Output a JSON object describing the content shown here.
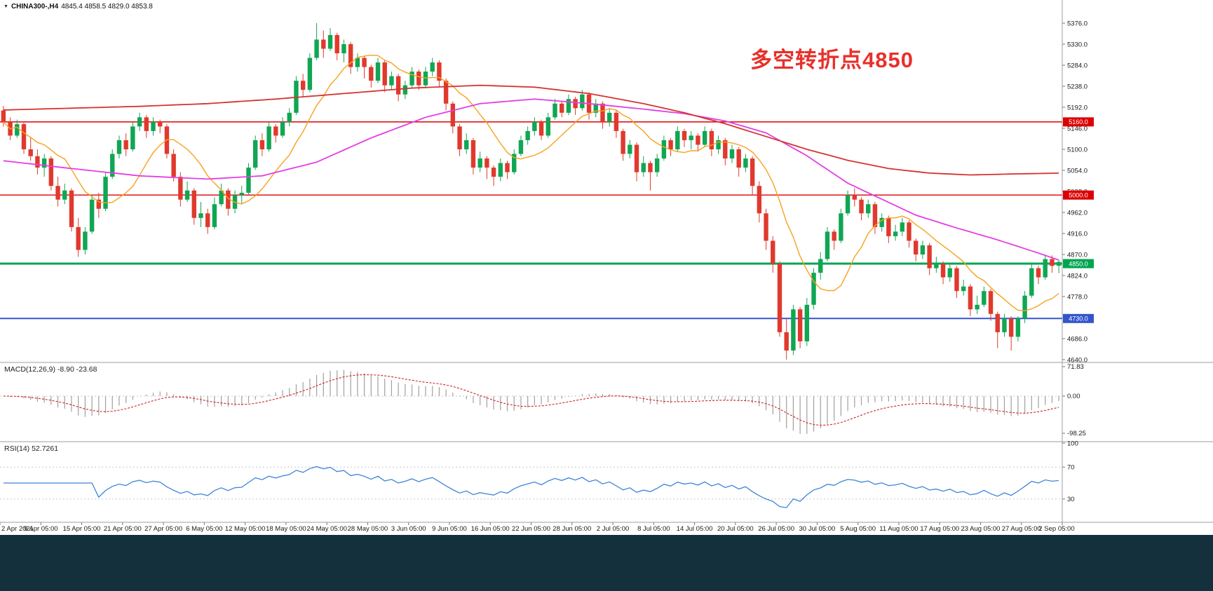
{
  "header": {
    "icon": "▼",
    "symbol": "CHINA300-,H4",
    "ohlc_text": "4845.4 4858.5 4829.0 4853.8"
  },
  "annotation": {
    "text": "多空转折点4850",
    "color": "#e8302a"
  },
  "colors": {
    "background": "#ffffff",
    "candle_up": "#10a653",
    "candle_down": "#e0392d",
    "ma_fast": "#f6a21d",
    "ma_medium": "#e33fe3",
    "ma_slow": "#d63333",
    "separator": "#9e9e9e",
    "axis_text": "#1a1a1a",
    "macd_histogram": "#a0a0a0",
    "macd_signal": "#cc2222",
    "rsi_line": "#3d85d8",
    "level_dotted": "#c8c8c8",
    "bottom_bar": "#14303c"
  },
  "chart_data": {
    "type": "candlestick",
    "symbol": "CHINA300-",
    "timeframe": "H4",
    "ohlc_display": {
      "open": "4845.4",
      "high": "4858.5",
      "low": "4829.0",
      "close": "4853.8"
    },
    "price_axis": {
      "ticks": [
        "5376.0",
        "5330.0",
        "5284.0",
        "5238.0",
        "5192.0",
        "5146.0",
        "5100.0",
        "5054.0",
        "5008.0",
        "4962.0",
        "4916.0",
        "4870.0",
        "4824.0",
        "4778.0",
        "4732.0",
        "4686.0",
        "4640.0"
      ],
      "max": 5376.0,
      "min": 4640.0
    },
    "time_axis": [
      "2 Apr 2021",
      "9 Apr 05:00",
      "15 Apr 05:00",
      "21 Apr 05:00",
      "27 Apr 05:00",
      "6 May 05:00",
      "12 May 05:00",
      "18 May 05:00",
      "24 May 05:00",
      "28 May 05:00",
      "3 Jun 05:00",
      "9 Jun 05:00",
      "16 Jun 05:00",
      "22 Jun 05:00",
      "28 Jun 05:00",
      "2 Jul 05:00",
      "8 Jul 05:00",
      "14 Jul 05:00",
      "20 Jul 05:00",
      "26 Jul 05:00",
      "30 Jul 05:00",
      "5 Aug 05:00",
      "11 Aug 05:00",
      "17 Aug 05:00",
      "23 Aug 05:00",
      "27 Aug 05:00",
      "2 Sep 05:00"
    ],
    "hlines": [
      {
        "price": 5160.0,
        "label": "5160.0",
        "color": "#dd0000",
        "width": 1.4
      },
      {
        "price": 5000.0,
        "label": "5000.0",
        "color": "#dd0000",
        "width": 1.4
      },
      {
        "price": 4850.0,
        "label": "4850.0",
        "color": "#00a550",
        "width": 3
      },
      {
        "price": 4730.0,
        "label": "4730.0",
        "color": "#3355cc",
        "width": 2
      }
    ],
    "candles": [
      [
        5185,
        5195,
        5150,
        5160
      ],
      [
        5160,
        5170,
        5120,
        5130
      ],
      [
        5130,
        5165,
        5125,
        5155
      ],
      [
        5155,
        5160,
        5090,
        5100
      ],
      [
        5100,
        5125,
        5075,
        5085
      ],
      [
        5085,
        5100,
        5045,
        5060
      ],
      [
        5060,
        5090,
        5040,
        5080
      ],
      [
        5080,
        5085,
        5010,
        5020
      ],
      [
        5020,
        5040,
        4975,
        4990
      ],
      [
        4990,
        5025,
        4980,
        5010
      ],
      [
        5010,
        5015,
        4920,
        4930
      ],
      [
        4930,
        4950,
        4865,
        4880
      ],
      [
        4880,
        4930,
        4870,
        4920
      ],
      [
        4920,
        5000,
        4915,
        4990
      ],
      [
        4990,
        5005,
        4950,
        4970
      ],
      [
        4970,
        5050,
        4965,
        5040
      ],
      [
        5040,
        5100,
        5035,
        5090
      ],
      [
        5090,
        5130,
        5080,
        5120
      ],
      [
        5120,
        5135,
        5085,
        5100
      ],
      [
        5100,
        5160,
        5095,
        5150
      ],
      [
        5150,
        5180,
        5140,
        5170
      ],
      [
        5170,
        5175,
        5125,
        5140
      ],
      [
        5140,
        5170,
        5130,
        5160
      ],
      [
        5160,
        5165,
        5135,
        5150
      ],
      [
        5150,
        5155,
        5080,
        5090
      ],
      [
        5090,
        5100,
        5030,
        5040
      ],
      [
        5040,
        5050,
        4975,
        4990
      ],
      [
        4990,
        5030,
        4985,
        5010
      ],
      [
        5010,
        5015,
        4935,
        4950
      ],
      [
        4950,
        4985,
        4930,
        4960
      ],
      [
        4960,
        4970,
        4915,
        4930
      ],
      [
        4930,
        4995,
        4925,
        4980
      ],
      [
        4980,
        5025,
        4975,
        5010
      ],
      [
        5010,
        5015,
        4955,
        4970
      ],
      [
        4970,
        5010,
        4960,
        5000
      ],
      [
        5000,
        5020,
        4980,
        5005
      ],
      [
        5005,
        5070,
        5000,
        5060
      ],
      [
        5060,
        5130,
        5055,
        5120
      ],
      [
        5120,
        5135,
        5085,
        5100
      ],
      [
        5100,
        5160,
        5095,
        5150
      ],
      [
        5150,
        5155,
        5115,
        5130
      ],
      [
        5130,
        5170,
        5125,
        5160
      ],
      [
        5160,
        5190,
        5150,
        5180
      ],
      [
        5180,
        5260,
        5175,
        5250
      ],
      [
        5250,
        5265,
        5215,
        5230
      ],
      [
        5230,
        5310,
        5225,
        5300
      ],
      [
        5300,
        5376,
        5295,
        5340
      ],
      [
        5340,
        5360,
        5300,
        5320
      ],
      [
        5320,
        5365,
        5315,
        5350
      ],
      [
        5350,
        5355,
        5295,
        5310
      ],
      [
        5310,
        5340,
        5290,
        5330
      ],
      [
        5330,
        5335,
        5265,
        5280
      ],
      [
        5280,
        5310,
        5270,
        5300
      ],
      [
        5300,
        5305,
        5255,
        5280
      ],
      [
        5280,
        5285,
        5235,
        5250
      ],
      [
        5250,
        5300,
        5245,
        5290
      ],
      [
        5290,
        5295,
        5225,
        5240
      ],
      [
        5240,
        5270,
        5230,
        5260
      ],
      [
        5260,
        5265,
        5205,
        5220
      ],
      [
        5220,
        5250,
        5210,
        5240
      ],
      [
        5240,
        5280,
        5235,
        5270
      ],
      [
        5270,
        5275,
        5230,
        5240
      ],
      [
        5240,
        5280,
        5235,
        5270
      ],
      [
        5270,
        5300,
        5260,
        5290
      ],
      [
        5290,
        5295,
        5235,
        5250
      ],
      [
        5250,
        5255,
        5185,
        5200
      ],
      [
        5200,
        5205,
        5135,
        5150
      ],
      [
        5150,
        5155,
        5085,
        5100
      ],
      [
        5100,
        5135,
        5090,
        5120
      ],
      [
        5120,
        5125,
        5045,
        5060
      ],
      [
        5060,
        5095,
        5050,
        5080
      ],
      [
        5080,
        5085,
        5035,
        5060
      ],
      [
        5060,
        5065,
        5020,
        5040
      ],
      [
        5040,
        5080,
        5030,
        5070
      ],
      [
        5070,
        5075,
        5035,
        5050
      ],
      [
        5050,
        5100,
        5045,
        5090
      ],
      [
        5090,
        5130,
        5085,
        5120
      ],
      [
        5120,
        5150,
        5110,
        5140
      ],
      [
        5140,
        5170,
        5130,
        5160
      ],
      [
        5160,
        5165,
        5120,
        5130
      ],
      [
        5130,
        5180,
        5125,
        5170
      ],
      [
        5170,
        5210,
        5165,
        5200
      ],
      [
        5200,
        5205,
        5170,
        5180
      ],
      [
        5180,
        5220,
        5175,
        5210
      ],
      [
        5210,
        5215,
        5175,
        5190
      ],
      [
        5190,
        5230,
        5185,
        5220
      ],
      [
        5220,
        5225,
        5165,
        5180
      ],
      [
        5180,
        5210,
        5170,
        5200
      ],
      [
        5200,
        5205,
        5145,
        5160
      ],
      [
        5160,
        5190,
        5150,
        5180
      ],
      [
        5180,
        5185,
        5125,
        5140
      ],
      [
        5140,
        5145,
        5075,
        5090
      ],
      [
        5090,
        5120,
        5080,
        5110
      ],
      [
        5110,
        5115,
        5030,
        5050
      ],
      [
        5050,
        5085,
        5040,
        5070
      ],
      [
        5070,
        5075,
        5010,
        5050
      ],
      [
        5050,
        5090,
        5040,
        5080
      ],
      [
        5080,
        5130,
        5075,
        5120
      ],
      [
        5120,
        5125,
        5085,
        5100
      ],
      [
        5100,
        5150,
        5095,
        5140
      ],
      [
        5140,
        5145,
        5105,
        5120
      ],
      [
        5120,
        5140,
        5100,
        5130
      ],
      [
        5130,
        5135,
        5095,
        5110
      ],
      [
        5110,
        5150,
        5105,
        5140
      ],
      [
        5140,
        5145,
        5085,
        5100
      ],
      [
        5100,
        5130,
        5090,
        5120
      ],
      [
        5120,
        5125,
        5065,
        5080
      ],
      [
        5080,
        5110,
        5070,
        5100
      ],
      [
        5100,
        5105,
        5040,
        5060
      ],
      [
        5060,
        5090,
        5050,
        5080
      ],
      [
        5080,
        5085,
        5000,
        5020
      ],
      [
        5020,
        5030,
        4940,
        4960
      ],
      [
        4960,
        4970,
        4880,
        4900
      ],
      [
        4900,
        4910,
        4830,
        4850
      ],
      [
        4850,
        4855,
        4690,
        4700
      ],
      [
        4700,
        4730,
        4640,
        4660
      ],
      [
        4660,
        4760,
        4650,
        4750
      ],
      [
        4750,
        4755,
        4665,
        4680
      ],
      [
        4680,
        4775,
        4670,
        4760
      ],
      [
        4760,
        4840,
        4750,
        4830
      ],
      [
        4830,
        4875,
        4815,
        4860
      ],
      [
        4860,
        4930,
        4855,
        4920
      ],
      [
        4920,
        4925,
        4880,
        4900
      ],
      [
        4900,
        4970,
        4895,
        4960
      ],
      [
        4960,
        5010,
        4955,
        5000
      ],
      [
        5000,
        5015,
        4975,
        4990
      ],
      [
        4990,
        4995,
        4945,
        4960
      ],
      [
        4960,
        4990,
        4950,
        4980
      ],
      [
        4980,
        4985,
        4915,
        4930
      ],
      [
        4930,
        4960,
        4920,
        4950
      ],
      [
        4950,
        4955,
        4895,
        4910
      ],
      [
        4910,
        4935,
        4900,
        4920
      ],
      [
        4920,
        4950,
        4910,
        4940
      ],
      [
        4940,
        4945,
        4885,
        4900
      ],
      [
        4900,
        4905,
        4855,
        4870
      ],
      [
        4870,
        4900,
        4860,
        4890
      ],
      [
        4890,
        4895,
        4825,
        4840
      ],
      [
        4840,
        4865,
        4830,
        4850
      ],
      [
        4850,
        4855,
        4805,
        4820
      ],
      [
        4820,
        4850,
        4810,
        4840
      ],
      [
        4840,
        4845,
        4775,
        4790
      ],
      [
        4790,
        4815,
        4780,
        4800
      ],
      [
        4800,
        4805,
        4735,
        4750
      ],
      [
        4750,
        4780,
        4740,
        4760
      ],
      [
        4760,
        4800,
        4755,
        4790
      ],
      [
        4790,
        4795,
        4725,
        4740
      ],
      [
        4740,
        4745,
        4665,
        4700
      ],
      [
        4700,
        4740,
        4690,
        4730
      ],
      [
        4730,
        4735,
        4660,
        4690
      ],
      [
        4690,
        4735,
        4680,
        4730
      ],
      [
        4730,
        4790,
        4720,
        4780
      ],
      [
        4780,
        4850,
        4775,
        4840
      ],
      [
        4840,
        4845,
        4805,
        4820
      ],
      [
        4820,
        4870,
        4815,
        4860
      ],
      [
        4860,
        4868,
        4830,
        4845
      ],
      [
        4845.4,
        4858.5,
        4829,
        4853.8
      ]
    ],
    "moving_averages": {
      "fast": {
        "name": "fast-ma",
        "period": 10
      },
      "medium": {
        "name": "medium-ma",
        "anchors": [
          [
            0,
            5075
          ],
          [
            10,
            5058
          ],
          [
            20,
            5042
          ],
          [
            30,
            5035
          ],
          [
            38,
            5042
          ],
          [
            46,
            5072
          ],
          [
            54,
            5125
          ],
          [
            62,
            5170
          ],
          [
            70,
            5200
          ],
          [
            78,
            5210
          ],
          [
            86,
            5200
          ],
          [
            94,
            5188
          ],
          [
            100,
            5178
          ],
          [
            106,
            5162
          ],
          [
            112,
            5136
          ],
          [
            118,
            5086
          ],
          [
            124,
            5026
          ],
          [
            128,
            4998
          ],
          [
            134,
            4956
          ],
          [
            140,
            4928
          ],
          [
            146,
            4902
          ],
          [
            151,
            4878
          ],
          [
            155,
            4858
          ]
        ]
      },
      "slow": {
        "name": "slow-ma",
        "anchors": [
          [
            0,
            5186
          ],
          [
            10,
            5190
          ],
          [
            20,
            5194
          ],
          [
            30,
            5200
          ],
          [
            40,
            5210
          ],
          [
            50,
            5222
          ],
          [
            60,
            5234
          ],
          [
            70,
            5240
          ],
          [
            78,
            5236
          ],
          [
            86,
            5222
          ],
          [
            94,
            5200
          ],
          [
            100,
            5180
          ],
          [
            106,
            5156
          ],
          [
            112,
            5128
          ],
          [
            118,
            5100
          ],
          [
            124,
            5076
          ],
          [
            130,
            5058
          ],
          [
            136,
            5048
          ],
          [
            142,
            5044
          ],
          [
            148,
            5046
          ],
          [
            155,
            5048
          ]
        ]
      }
    },
    "macd": {
      "label_full": "MACD(12,26,9) -8.90 -23.68",
      "params": [
        12,
        26,
        9
      ],
      "main_value": -8.9,
      "signal_value": -23.68,
      "axis_labels": [
        "71.83",
        "0.00",
        "-98.25"
      ]
    },
    "rsi": {
      "label_full": "RSI(14) 52.7261",
      "period": 14,
      "value": 52.7261,
      "axis_labels": [
        "100",
        "70",
        "30"
      ],
      "levels": [
        70,
        30
      ]
    }
  }
}
